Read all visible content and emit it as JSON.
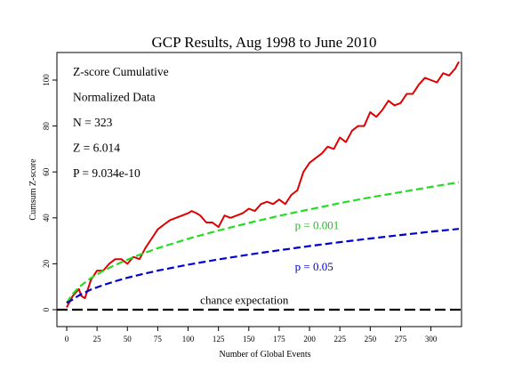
{
  "chart_data": {
    "type": "line",
    "title": "GCP Results, Aug 1998 to June 2010",
    "xlabel": "Number of Global Events",
    "ylabel": "Cumsum Z-score",
    "xlim": [
      0,
      323
    ],
    "ylim": [
      -8,
      111
    ],
    "x_ticks": [
      0,
      25,
      50,
      75,
      100,
      125,
      150,
      175,
      200,
      225,
      250,
      275,
      300
    ],
    "y_ticks": [
      0,
      20,
      40,
      60,
      80,
      100
    ],
    "grid": false,
    "stats": [
      "Z-score Cumulative",
      "Normalized Data",
      "N = 323",
      "Z = 6.014",
      "P = 9.034e-10"
    ],
    "series": [
      {
        "name": "Z-score Cumulative",
        "color": "#e00000",
        "style": "solid",
        "x": [
          0,
          5,
          10,
          12,
          15,
          20,
          25,
          30,
          35,
          40,
          45,
          50,
          55,
          60,
          65,
          70,
          75,
          80,
          85,
          90,
          95,
          100,
          103,
          107,
          110,
          115,
          120,
          125,
          130,
          135,
          140,
          145,
          150,
          155,
          160,
          165,
          170,
          175,
          180,
          185,
          190,
          195,
          200,
          205,
          210,
          215,
          220,
          225,
          230,
          235,
          240,
          245,
          250,
          255,
          260,
          265,
          270,
          275,
          280,
          285,
          290,
          295,
          300,
          305,
          310,
          315,
          320,
          323
        ],
        "y": [
          1,
          6,
          9,
          6,
          5,
          13,
          17,
          17,
          20,
          22,
          22,
          20,
          23,
          22,
          27,
          31,
          35,
          37,
          39,
          40,
          41,
          42,
          43,
          42,
          41,
          38,
          38,
          36,
          41,
          40,
          41,
          42,
          44,
          43,
          46,
          47,
          46,
          48,
          46,
          50,
          52,
          60,
          64,
          66,
          68,
          71,
          70,
          75,
          73,
          78,
          80,
          80,
          86,
          84,
          87,
          91,
          89,
          90,
          94,
          94,
          98,
          101,
          100,
          99,
          103,
          102,
          105,
          108
        ]
      },
      {
        "name": "p = 0.001",
        "color": "#22dd22",
        "style": "dashed",
        "x": [
          0,
          5,
          10,
          20,
          30,
          40,
          50,
          60,
          75,
          100,
          125,
          150,
          175,
          200,
          225,
          250,
          275,
          300,
          323
        ],
        "y": [
          3,
          6.9,
          9.8,
          13.8,
          16.9,
          19.5,
          21.8,
          23.9,
          26.8,
          30.9,
          34.5,
          37.8,
          40.9,
          43.7,
          46.4,
          48.9,
          51.2,
          53.5,
          55.5
        ]
      },
      {
        "name": "p = 0.05",
        "color": "#0000cc",
        "style": "dashed",
        "x": [
          0,
          5,
          10,
          20,
          30,
          40,
          50,
          60,
          75,
          100,
          125,
          150,
          175,
          200,
          225,
          250,
          275,
          300,
          323
        ],
        "y": [
          3,
          4.4,
          6.2,
          8.8,
          10.7,
          12.4,
          13.9,
          15.2,
          17,
          19.6,
          21.9,
          24,
          25.9,
          27.7,
          29.4,
          31,
          32.5,
          34,
          35.2
        ]
      },
      {
        "name": "chance expectation",
        "color": "#000000",
        "style": "dashed",
        "x": [
          0,
          323
        ],
        "y": [
          0,
          0
        ]
      }
    ],
    "annotations": [
      {
        "text": "p = 0.001",
        "x": 188,
        "y": 35,
        "color": "#22bb22"
      },
      {
        "text": "p = 0.05",
        "x": 188,
        "y": 17,
        "color": "#0000cc"
      },
      {
        "text": "chance expectation",
        "x": 110,
        "y": 2.5,
        "color": "#000000"
      }
    ]
  }
}
